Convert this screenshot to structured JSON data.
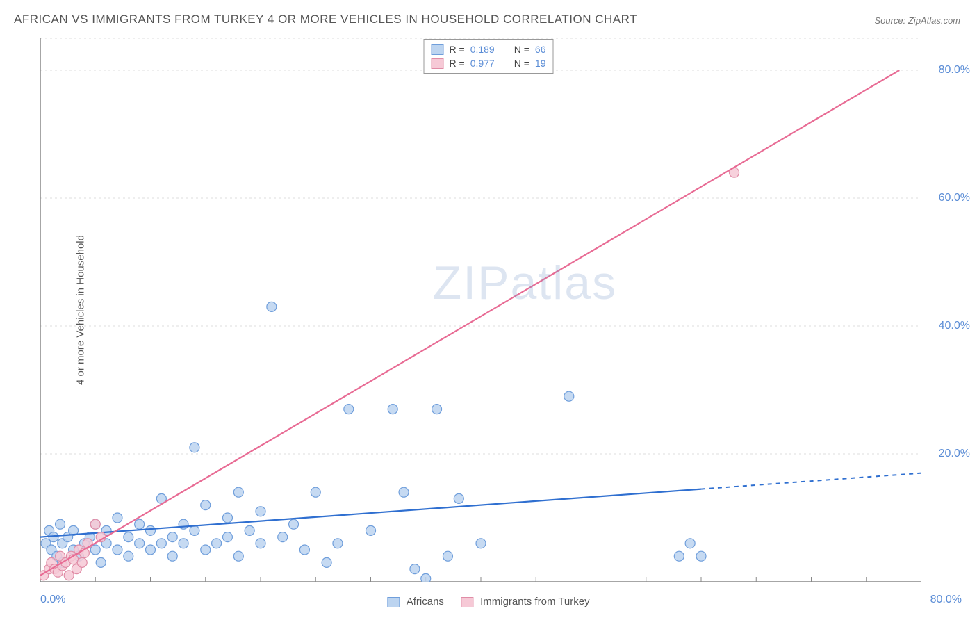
{
  "title": "AFRICAN VS IMMIGRANTS FROM TURKEY 4 OR MORE VEHICLES IN HOUSEHOLD CORRELATION CHART",
  "source": "Source: ZipAtlas.com",
  "ylabel": "4 or more Vehicles in Household",
  "watermark": "ZIPatlas",
  "axes": {
    "xmin": 0,
    "xmax": 80,
    "ymin": 0,
    "ymax": 85,
    "x_tick_labels": {
      "origin": "0.0%",
      "max": "80.0%"
    },
    "y_grid": [
      20,
      40,
      60,
      80
    ],
    "y_tick_labels": [
      "20.0%",
      "40.0%",
      "60.0%",
      "80.0%"
    ],
    "x_minor_ticks": [
      5,
      10,
      15,
      20,
      25,
      30,
      35,
      40,
      45,
      50,
      55,
      60,
      65,
      70,
      75
    ],
    "grid_color": "#dddddd",
    "axis_color": "#888888",
    "tick_label_color": "#5b8dd6"
  },
  "series": [
    {
      "name": "Africans",
      "label": "Africans",
      "marker_fill": "#bcd4f0",
      "marker_stroke": "#6f9edb",
      "line_color": "#2f6fd0",
      "line_dash_after_x": 60,
      "marker_r": 7,
      "R_label": "R =",
      "R": "0.189",
      "N_label": "N =",
      "N": "66",
      "trend": {
        "x1": 0,
        "y1": 7,
        "x2": 80,
        "y2": 17
      },
      "points": [
        [
          0.5,
          6
        ],
        [
          0.8,
          8
        ],
        [
          1,
          5
        ],
        [
          1.2,
          7
        ],
        [
          1.5,
          4
        ],
        [
          1.8,
          9
        ],
        [
          2,
          6
        ],
        [
          2,
          3
        ],
        [
          2.5,
          7
        ],
        [
          3,
          5
        ],
        [
          3,
          8
        ],
        [
          3.5,
          4
        ],
        [
          4,
          6
        ],
        [
          4.5,
          7
        ],
        [
          5,
          5
        ],
        [
          5,
          9
        ],
        [
          5.5,
          3
        ],
        [
          6,
          6
        ],
        [
          6,
          8
        ],
        [
          7,
          5
        ],
        [
          7,
          10
        ],
        [
          8,
          7
        ],
        [
          8,
          4
        ],
        [
          9,
          6
        ],
        [
          9,
          9
        ],
        [
          10,
          5
        ],
        [
          10,
          8
        ],
        [
          11,
          6
        ],
        [
          11,
          13
        ],
        [
          12,
          7
        ],
        [
          12,
          4
        ],
        [
          13,
          9
        ],
        [
          13,
          6
        ],
        [
          14,
          8
        ],
        [
          14,
          21
        ],
        [
          15,
          5
        ],
        [
          15,
          12
        ],
        [
          16,
          6
        ],
        [
          17,
          10
        ],
        [
          17,
          7
        ],
        [
          18,
          14
        ],
        [
          18,
          4
        ],
        [
          19,
          8
        ],
        [
          20,
          6
        ],
        [
          20,
          11
        ],
        [
          21,
          43
        ],
        [
          22,
          7
        ],
        [
          23,
          9
        ],
        [
          24,
          5
        ],
        [
          25,
          14
        ],
        [
          26,
          3
        ],
        [
          27,
          6
        ],
        [
          28,
          27
        ],
        [
          30,
          8
        ],
        [
          32,
          27
        ],
        [
          33,
          14
        ],
        [
          34,
          2
        ],
        [
          36,
          27
        ],
        [
          37,
          4
        ],
        [
          38,
          13
        ],
        [
          40,
          6
        ],
        [
          48,
          29
        ],
        [
          58,
          4
        ],
        [
          59,
          6
        ],
        [
          60,
          4
        ],
        [
          35,
          0.5
        ]
      ]
    },
    {
      "name": "Immigrants from Turkey",
      "label": "Immigrants from Turkey",
      "marker_fill": "#f6c9d6",
      "marker_stroke": "#e08ca6",
      "line_color": "#e86b94",
      "marker_r": 7,
      "R_label": "R =",
      "R": "0.977",
      "N_label": "N =",
      "N": "19",
      "trend": {
        "x1": 0,
        "y1": 1,
        "x2": 78,
        "y2": 80
      },
      "points": [
        [
          0.3,
          1
        ],
        [
          0.8,
          2
        ],
        [
          1,
          3
        ],
        [
          1.3,
          2
        ],
        [
          1.6,
          1.5
        ],
        [
          1.8,
          4
        ],
        [
          2,
          2.5
        ],
        [
          2.3,
          3
        ],
        [
          2.6,
          1
        ],
        [
          2.8,
          4
        ],
        [
          3,
          3.5
        ],
        [
          3.3,
          2
        ],
        [
          3.5,
          5
        ],
        [
          3.8,
          3
        ],
        [
          4,
          4.5
        ],
        [
          4.3,
          6
        ],
        [
          5,
          9
        ],
        [
          5.5,
          7
        ],
        [
          63,
          64
        ]
      ]
    }
  ],
  "legend_top": {
    "border_color": "#999999",
    "rows": [
      {
        "swatch_fill": "#bcd4f0",
        "swatch_stroke": "#6f9edb"
      },
      {
        "swatch_fill": "#f6c9d6",
        "swatch_stroke": "#e08ca6"
      }
    ]
  }
}
